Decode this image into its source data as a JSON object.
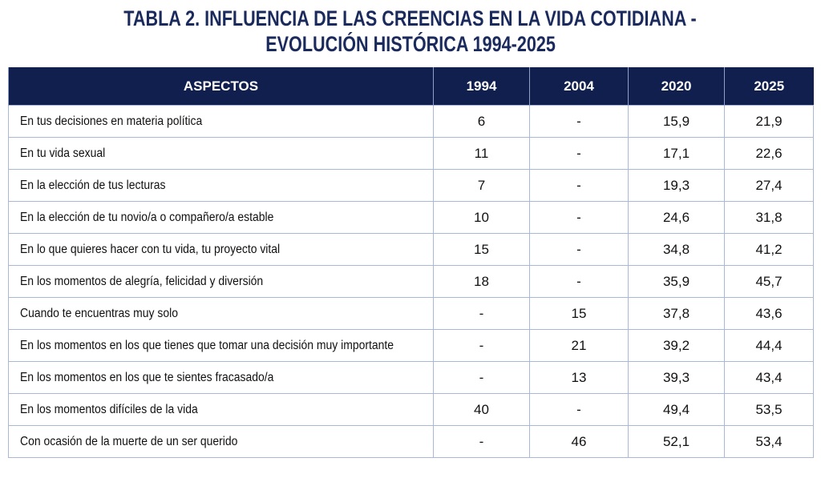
{
  "title": [
    "TABLA 2. INFLUENCIA DE LAS CREENCIAS EN LA VIDA COTIDIANA -",
    "EVOLUCIÓN HISTÓRICA 1994-2025"
  ],
  "table": {
    "header": [
      "ASPECTOS",
      "1994",
      "2004",
      "2020",
      "2025"
    ],
    "rows": [
      [
        "En tus decisiones en materia política",
        "6",
        "-",
        "15,9",
        "21,9"
      ],
      [
        "En tu vida sexual",
        "11",
        "-",
        "17,1",
        "22,6"
      ],
      [
        "En la elección de tus lecturas",
        "7",
        "-",
        "19,3",
        "27,4"
      ],
      [
        "En la elección de tu novio/a o compañero/a estable",
        "10",
        "-",
        "24,6",
        "31,8"
      ],
      [
        "En lo que quieres hacer con tu vida, tu proyecto vital",
        "15",
        "-",
        "34,8",
        "41,2"
      ],
      [
        "En los momentos de alegría, felicidad y diversión",
        "18",
        "-",
        "35,9",
        "45,7"
      ],
      [
        "Cuando te encuentras muy solo",
        "-",
        "15",
        "37,8",
        "43,6"
      ],
      [
        "En los momentos en los que tienes que tomar una decisión muy importante",
        "-",
        "21",
        "39,2",
        "44,4"
      ],
      [
        "En los momentos en los que te sientes fracasado/a",
        "-",
        "13",
        "39,3",
        "43,4"
      ],
      [
        "En los momentos difíciles de la vida",
        "40",
        "-",
        "49,4",
        "53,5"
      ],
      [
        "Con ocasión de la muerte de un ser querido",
        "-",
        "46",
        "52,1",
        "53,4"
      ]
    ]
  }
}
